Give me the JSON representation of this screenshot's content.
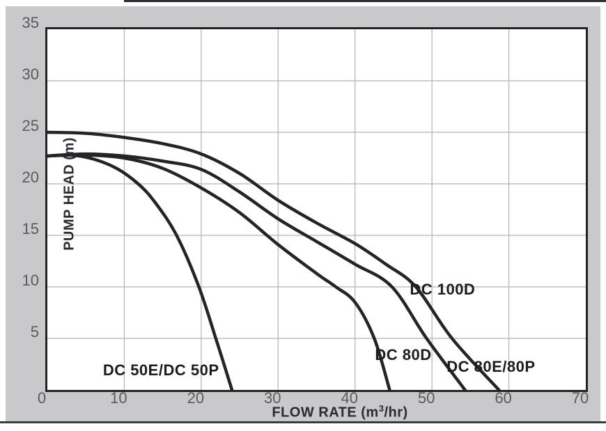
{
  "page": {
    "panel_bg": "#c9c9cc",
    "top_rule_color": "#2e2e32",
    "bottom_rule_color": "#3a3a3e"
  },
  "chart_data": {
    "type": "line",
    "title": "",
    "xlabel": "FLOW RATE (m³/hr)",
    "xlabel_parts": {
      "pre": "FLOW RATE (m",
      "sup": "3",
      "post": "/hr)"
    },
    "ylabel": "PUMP HEAD (m)",
    "xlim": [
      0,
      70
    ],
    "ylim": [
      0,
      35
    ],
    "x_ticks": [
      0,
      10,
      20,
      30,
      40,
      50,
      60,
      70
    ],
    "y_ticks": [
      5,
      10,
      15,
      20,
      25,
      30,
      35
    ],
    "grid": true,
    "legend_position": "inline-labels",
    "styles": {
      "line_color": "#242428",
      "line_width": 4.5,
      "grid_color": "#b2b2b6",
      "frame_color": "#232327",
      "tick_color": "#5a5a5f",
      "axis_title_color": "#2b2b2f",
      "curve_label_color": "#1c1c1f"
    },
    "series": [
      {
        "name": "DC 50E/DC 50P",
        "points": [
          [
            0,
            22.7
          ],
          [
            3,
            22.8
          ],
          [
            6,
            22.4
          ],
          [
            9,
            21.5
          ],
          [
            11.8,
            20
          ],
          [
            14,
            18.2
          ],
          [
            16.8,
            15
          ],
          [
            19.7,
            10
          ],
          [
            21.9,
            5
          ],
          [
            24,
            0
          ]
        ]
      },
      {
        "name": "DC 80D",
        "points": [
          [
            0,
            22.7
          ],
          [
            5,
            22.8
          ],
          [
            10,
            22.5
          ],
          [
            15,
            21.5
          ],
          [
            20,
            19.6
          ],
          [
            25,
            17.2
          ],
          [
            30,
            14.1
          ],
          [
            35,
            11.3
          ],
          [
            37.5,
            10
          ],
          [
            40,
            8.5
          ],
          [
            42.5,
            5
          ],
          [
            44.5,
            0
          ]
        ]
      },
      {
        "name": "DC 80E/80P",
        "points": [
          [
            0,
            22.7
          ],
          [
            5,
            22.9
          ],
          [
            10,
            22.7
          ],
          [
            15,
            22.2
          ],
          [
            20,
            21.4
          ],
          [
            25,
            19.2
          ],
          [
            30,
            16.6
          ],
          [
            35,
            14.4
          ],
          [
            40,
            12.2
          ],
          [
            44.8,
            10
          ],
          [
            49.3,
            5
          ],
          [
            54.3,
            0
          ]
        ]
      },
      {
        "name": "DC 100D",
        "points": [
          [
            0,
            25
          ],
          [
            5,
            24.9
          ],
          [
            10,
            24.5
          ],
          [
            15,
            23.9
          ],
          [
            20,
            22.9
          ],
          [
            25,
            21
          ],
          [
            30,
            18.4
          ],
          [
            35,
            16.2
          ],
          [
            40,
            14.2
          ],
          [
            44,
            12.2
          ],
          [
            47.9,
            10
          ],
          [
            52.6,
            5
          ],
          [
            58.7,
            0
          ]
        ]
      }
    ],
    "curve_labels": [
      {
        "text": "DC 50E/DC 50P",
        "x": 15.5,
        "y": 1.3
      },
      {
        "text": "DC 80D",
        "x": 47.0,
        "y": 2.8
      },
      {
        "text": "DC 80E/80P",
        "x": 58.4,
        "y": 1.6
      },
      {
        "text": "DC 100D",
        "x": 52.1,
        "y": 9.1
      }
    ]
  }
}
